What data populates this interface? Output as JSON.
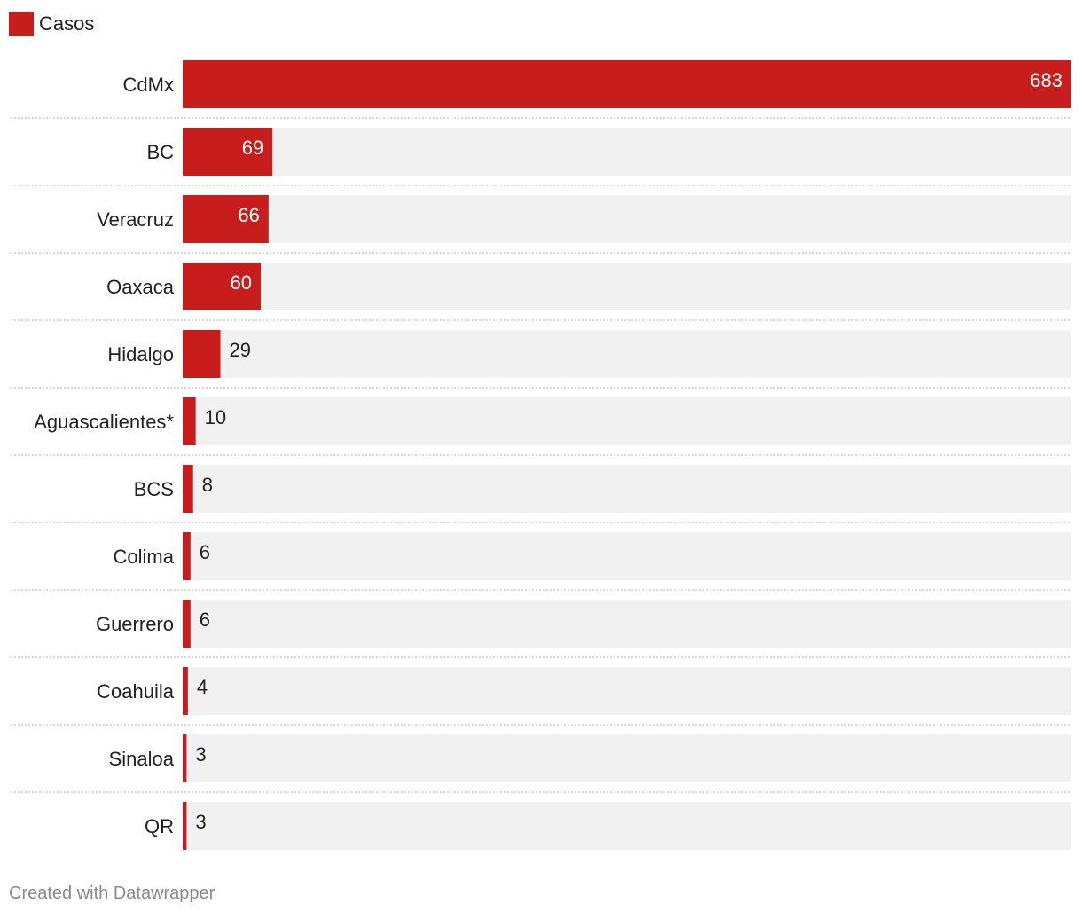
{
  "chart_data": {
    "type": "bar",
    "orientation": "horizontal",
    "legend": [
      {
        "name": "Casos",
        "color": "#c71e1d"
      }
    ],
    "categories": [
      "CdMx",
      "BC",
      "Veracruz",
      "Oaxaca",
      "Hidalgo",
      "Aguascalientes*",
      "BCS",
      "Colima",
      "Guerrero",
      "Coahuila",
      "Sinaloa",
      "QR"
    ],
    "series": [
      {
        "name": "Casos",
        "values": [
          683,
          69,
          66,
          60,
          29,
          10,
          8,
          6,
          6,
          4,
          3,
          3
        ]
      }
    ],
    "xlim": [
      0,
      683
    ],
    "colors": {
      "bar": "#c71e1d",
      "track": "#f1f1f1",
      "separator": "#c8c8c8",
      "label_inside": "#ffffff",
      "label_outside": "#222222"
    }
  },
  "footer": {
    "credit": "Created with Datawrapper"
  }
}
